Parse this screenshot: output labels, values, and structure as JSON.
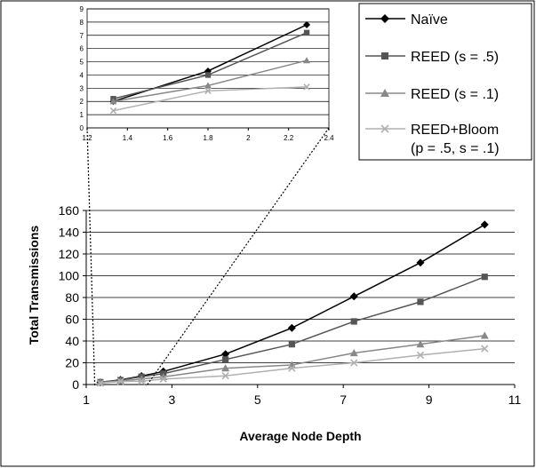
{
  "chart_data": [
    {
      "type": "line",
      "title": "",
      "xlabel": "Average Node Depth",
      "ylabel": "Total Transmissions",
      "xlim": [
        1,
        11
      ],
      "ylim": [
        0,
        160
      ],
      "xticks": [
        1,
        3,
        5,
        7,
        9,
        11
      ],
      "yticks": [
        0,
        20,
        40,
        60,
        80,
        100,
        120,
        140,
        160
      ],
      "grid": "horizontal",
      "legend_position": "top-right",
      "series": [
        {
          "name": "Naïve",
          "marker": "diamond",
          "color": "#000000",
          "x": [
            1.33,
            1.8,
            2.29,
            2.8,
            4.25,
            5.8,
            7.25,
            8.8,
            10.3
          ],
          "y": [
            2,
            4.3,
            7.8,
            12,
            28,
            52,
            81,
            112,
            147
          ]
        },
        {
          "name": "REED (s = .5)",
          "marker": "square",
          "color": "#555555",
          "x": [
            1.33,
            1.8,
            2.29,
            2.8,
            4.25,
            5.8,
            7.25,
            8.8,
            10.3
          ],
          "y": [
            2.2,
            4,
            7.2,
            10,
            23,
            37,
            58,
            76,
            99
          ]
        },
        {
          "name": "REED (s = .1)",
          "marker": "triangle",
          "color": "#888888",
          "x": [
            1.33,
            1.8,
            2.29,
            2.8,
            4.25,
            5.8,
            7.25,
            8.8,
            10.3
          ],
          "y": [
            2,
            3.2,
            5.1,
            7,
            15,
            18,
            29,
            37,
            45
          ]
        },
        {
          "name": "REED+Bloom",
          "name2": "(p = .5, s = .1)",
          "marker": "x",
          "color": "#b0b0b0",
          "x": [
            1.33,
            1.8,
            2.29,
            2.8,
            4.25,
            5.8,
            7.25,
            8.8,
            10.3
          ],
          "y": [
            1.3,
            2.8,
            3.1,
            5,
            8,
            15,
            20,
            27,
            33
          ]
        }
      ]
    },
    {
      "type": "line",
      "title": "",
      "xlim": [
        1.2,
        2.4
      ],
      "ylim": [
        0,
        9
      ],
      "xticks": [
        "1.2",
        "1.4",
        "1.6",
        "1.8",
        "2",
        "2.2",
        "2.4"
      ],
      "yticks": [
        0,
        1,
        2,
        3,
        4,
        5,
        6,
        7,
        8,
        9
      ],
      "grid": "horizontal",
      "note": "zoomed inset of main chart for x in [1.2, 2.4]",
      "series": [
        {
          "name": "Naïve",
          "x": [
            1.33,
            1.8,
            2.29
          ],
          "y": [
            2,
            4.3,
            7.8
          ]
        },
        {
          "name": "REED (s = .5)",
          "x": [
            1.33,
            1.8,
            2.29
          ],
          "y": [
            2.2,
            4,
            7.2
          ]
        },
        {
          "name": "REED (s = .1)",
          "x": [
            1.33,
            1.8,
            2.29
          ],
          "y": [
            2,
            3.2,
            5.1
          ]
        },
        {
          "name": "REED+Bloom",
          "x": [
            1.33,
            1.8,
            2.29
          ],
          "y": [
            1.3,
            2.8,
            3.1
          ]
        }
      ]
    }
  ]
}
